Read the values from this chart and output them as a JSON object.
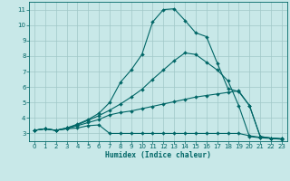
{
  "bg_color": "#c8e8e8",
  "grid_color": "#a0c8c8",
  "line_color": "#006666",
  "xlabel": "Humidex (Indice chaleur)",
  "xlim": [
    -0.5,
    23.5
  ],
  "ylim": [
    2.5,
    11.5
  ],
  "xticks": [
    0,
    1,
    2,
    3,
    4,
    5,
    6,
    7,
    8,
    9,
    10,
    11,
    12,
    13,
    14,
    15,
    16,
    17,
    18,
    19,
    20,
    21,
    22,
    23
  ],
  "yticks": [
    3,
    4,
    5,
    6,
    7,
    8,
    9,
    10,
    11
  ],
  "curves": [
    [
      3.2,
      3.3,
      3.2,
      3.3,
      3.35,
      3.5,
      3.55,
      3.0,
      3.0,
      3.0,
      3.0,
      3.0,
      3.0,
      3.0,
      3.0,
      3.0,
      3.0,
      3.0,
      3.0,
      3.0,
      2.85,
      2.75,
      2.7,
      2.65
    ],
    [
      3.2,
      3.3,
      3.2,
      3.3,
      3.5,
      3.7,
      3.9,
      4.2,
      4.35,
      4.45,
      4.6,
      4.75,
      4.9,
      5.05,
      5.2,
      5.35,
      5.45,
      5.55,
      5.65,
      5.75,
      4.8,
      2.8,
      2.7,
      2.65
    ],
    [
      3.2,
      3.3,
      3.2,
      3.35,
      3.55,
      3.85,
      4.15,
      4.5,
      4.9,
      5.35,
      5.85,
      6.5,
      7.1,
      7.7,
      8.2,
      8.1,
      7.6,
      7.1,
      6.4,
      4.8,
      2.8,
      2.72,
      2.68,
      2.62
    ],
    [
      3.2,
      3.3,
      3.2,
      3.35,
      3.6,
      3.9,
      4.3,
      5.0,
      6.3,
      7.1,
      8.1,
      10.2,
      11.0,
      11.05,
      10.3,
      9.5,
      9.25,
      7.55,
      5.9,
      5.7,
      4.8,
      2.8,
      2.7,
      2.65
    ]
  ]
}
